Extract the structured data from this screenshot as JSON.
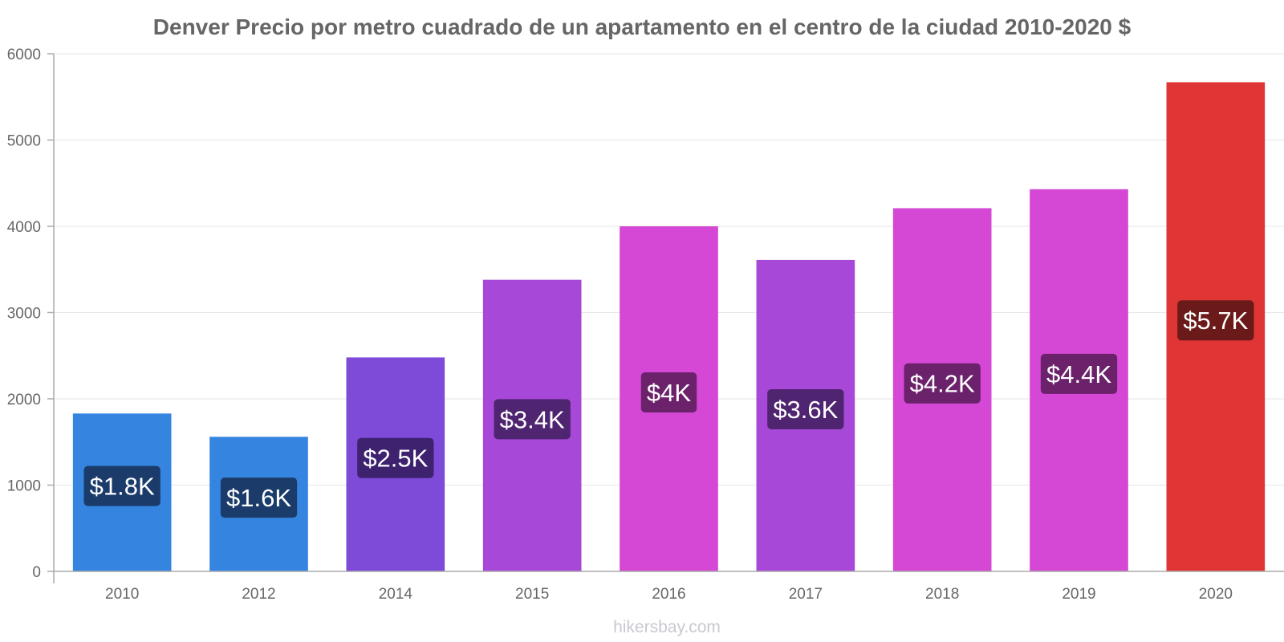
{
  "chart_data": {
    "type": "bar",
    "title": "Denver Precio por metro cuadrado de un apartamento en el centro de la ciudad 2010-2020 $",
    "xlabel": "",
    "ylabel": "",
    "ylim": [
      0,
      6000
    ],
    "yticks": [
      0,
      1000,
      2000,
      3000,
      4000,
      5000,
      6000
    ],
    "categories": [
      "2010",
      "2012",
      "2014",
      "2015",
      "2016",
      "2017",
      "2018",
      "2019",
      "2020"
    ],
    "values": [
      1830,
      1560,
      2480,
      3380,
      4000,
      3610,
      4210,
      4430,
      5670
    ],
    "data_labels": [
      "$1.8K",
      "$1.6K",
      "$2.5K",
      "$3.4K",
      "$4K",
      "$3.6K",
      "$4.2K",
      "$4.4K",
      "$5.7K"
    ],
    "bar_colors": [
      "#3584e0",
      "#3584e0",
      "#7e4ad8",
      "#a848d8",
      "#d548d5",
      "#a848d8",
      "#d548d5",
      "#d548d5",
      "#e03535"
    ],
    "label_bg_colors": [
      "#1b3c6b",
      "#1b3c6b",
      "#3e2270",
      "#4f2470",
      "#6b226b",
      "#4f2470",
      "#6b226b",
      "#6b226b",
      "#6b1a1a"
    ],
    "grid": true,
    "legend": "none"
  },
  "footer": {
    "source": "hikersbay.com"
  }
}
